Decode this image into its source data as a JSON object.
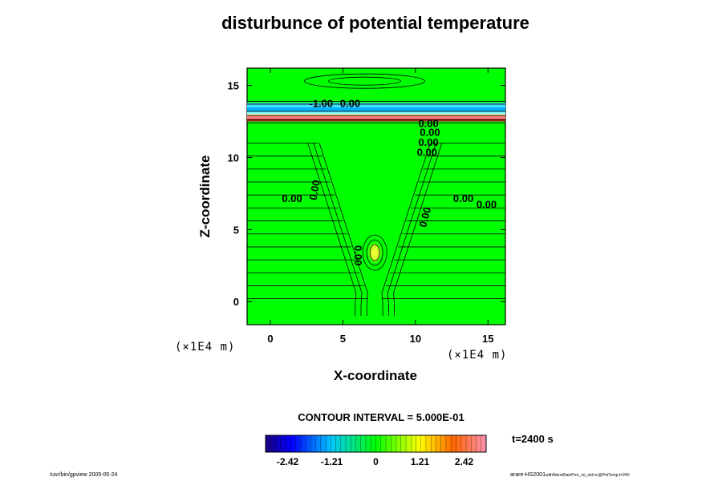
{
  "chart_data": {
    "type": "heatmap",
    "title": "disturbunce of potential temperature",
    "xlabel": "X-coordinate",
    "ylabel": "Z-coordinate",
    "x_unit": "(×1E4 m)",
    "z_unit": "(×1E4 m)",
    "xlim": [
      -1.6,
      16.2
    ],
    "ylim": [
      -1.6,
      16.2
    ],
    "x_ticks": [
      0,
      5,
      10,
      15
    ],
    "y_ticks": [
      0,
      5,
      10,
      15
    ],
    "contour_interval_label": "CONTOUR INTERVAL = 5.000E-01",
    "time_label": "t=2400 s",
    "colorbar": {
      "min": -2.42,
      "max": 2.42,
      "ticks": [
        {
          "value": -2.42,
          "label": "-2.42"
        },
        {
          "value": -1.21,
          "label": "-1.21"
        },
        {
          "value": 0,
          "label": "0"
        },
        {
          "value": 1.21,
          "label": "1.21"
        },
        {
          "value": 2.42,
          "label": "2.42"
        }
      ]
    },
    "contour_labels": [
      {
        "text": "-1.00",
        "x": 3.5,
        "z": 13.5,
        "rotate": 0
      },
      {
        "text": "0.00",
        "x": 5.5,
        "z": 13.5,
        "rotate": 0
      },
      {
        "text": "0.00",
        "x": 10.9,
        "z": 12.1,
        "rotate": 0
      },
      {
        "text": "0.00",
        "x": 11.0,
        "z": 11.5,
        "rotate": 0
      },
      {
        "text": "0.00",
        "x": 10.9,
        "z": 10.8,
        "rotate": 0
      },
      {
        "text": "0.00",
        "x": 10.8,
        "z": 10.1,
        "rotate": 0
      },
      {
        "text": "0.00",
        "x": 1.5,
        "z": 6.9,
        "rotate": 0
      },
      {
        "text": "0.00",
        "x": 3.3,
        "z": 7.7,
        "rotate": -80
      },
      {
        "text": "0.00",
        "x": 10.9,
        "z": 5.8,
        "rotate": -75
      },
      {
        "text": "0.00",
        "x": 13.3,
        "z": 6.9,
        "rotate": 0
      },
      {
        "text": "0.00",
        "x": 14.9,
        "z": 6.5,
        "rotate": 0
      },
      {
        "text": "0.00",
        "x": 5.8,
        "z": 3.2,
        "rotate": 90
      }
    ],
    "features": {
      "warm_bubble_center": {
        "x": 7.2,
        "z": 3.4,
        "value": 0.6
      },
      "inversion_layer": {
        "z_bottom": 12.5,
        "z_top": 13.8,
        "min_value": -1.8,
        "max_value": 2.2
      }
    }
  },
  "footer": {
    "left": "/usr/bin/gpview 2005-05-24",
    "right": "arare-HS2001",
    "right_sub": "withWarmRainPrm_sri_std.nc@PotTemp,t=240"
  }
}
